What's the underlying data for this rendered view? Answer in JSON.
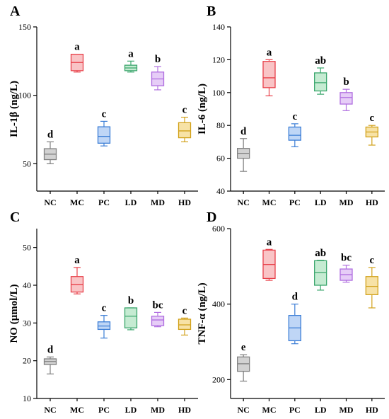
{
  "chart_data": [
    {
      "type": "box",
      "panel": "A",
      "ylabel": "IL-1β (ng/L)",
      "ylim": [
        30,
        150
      ],
      "yticks": [
        50,
        100,
        150
      ],
      "categories": [
        "NC",
        "MC",
        "PC",
        "LD",
        "MD",
        "HD"
      ],
      "colors": [
        "#808080",
        "#e8414a",
        "#3c7ed6",
        "#3aa66c",
        "#b06ee0",
        "#d2a21c"
      ],
      "fills": [
        "#d2d2d2",
        "#f9c4c6",
        "#bfd6f6",
        "#c5ebd2",
        "#e6cdf7",
        "#f7e2a6"
      ],
      "boxes": [
        {
          "min": 50,
          "q1": 53,
          "median": 57,
          "q3": 61,
          "max": 66
        },
        {
          "min": 117,
          "q1": 118,
          "median": 124,
          "q3": 130,
          "max": 130
        },
        {
          "min": 63,
          "q1": 65,
          "median": 70,
          "q3": 77,
          "max": 81
        },
        {
          "min": 117,
          "q1": 118,
          "median": 120,
          "q3": 122,
          "max": 125
        },
        {
          "min": 104,
          "q1": 107,
          "median": 112,
          "q3": 117,
          "max": 121
        },
        {
          "min": 66,
          "q1": 69,
          "median": 74,
          "q3": 80,
          "max": 84
        }
      ],
      "letters": [
        "d",
        "a",
        "c",
        "a",
        "b",
        "c"
      ]
    },
    {
      "type": "box",
      "panel": "B",
      "ylabel": "IL-6 (ng/L)",
      "ylim": [
        40,
        140
      ],
      "yticks": [
        40,
        60,
        80,
        100,
        120,
        140
      ],
      "categories": [
        "NC",
        "MC",
        "PC",
        "LD",
        "MD",
        "HD"
      ],
      "colors": [
        "#808080",
        "#e8414a",
        "#3c7ed6",
        "#3aa66c",
        "#b06ee0",
        "#d2a21c"
      ],
      "fills": [
        "#d2d2d2",
        "#f9c4c6",
        "#bfd6f6",
        "#c5ebd2",
        "#e6cdf7",
        "#f7e2a6"
      ],
      "boxes": [
        {
          "min": 52,
          "q1": 60,
          "median": 63,
          "q3": 66,
          "max": 72
        },
        {
          "min": 98,
          "q1": 103,
          "median": 109,
          "q3": 119,
          "max": 120
        },
        {
          "min": 67,
          "q1": 71,
          "median": 74,
          "q3": 79,
          "max": 81
        },
        {
          "min": 99,
          "q1": 101,
          "median": 106,
          "q3": 112,
          "max": 115
        },
        {
          "min": 89,
          "q1": 93,
          "median": 97,
          "q3": 100,
          "max": 102
        },
        {
          "min": 68,
          "q1": 73,
          "median": 76,
          "q3": 79,
          "max": 80
        }
      ],
      "letters": [
        "d",
        "a",
        "c",
        "ab",
        "b",
        "c"
      ]
    },
    {
      "type": "box",
      "panel": "C",
      "ylabel": "NO (μmol/L)",
      "ylim": [
        10,
        55
      ],
      "yticks": [
        10,
        20,
        30,
        40,
        50
      ],
      "categories": [
        "NC",
        "MC",
        "PC",
        "LD",
        "MD",
        "HD"
      ],
      "colors": [
        "#808080",
        "#e8414a",
        "#3c7ed6",
        "#3aa66c",
        "#b06ee0",
        "#d2a21c"
      ],
      "fills": [
        "#d2d2d2",
        "#f9c4c6",
        "#bfd6f6",
        "#c5ebd2",
        "#e6cdf7",
        "#f7e2a6"
      ],
      "boxes": [
        {
          "min": 16.5,
          "q1": 19,
          "median": 19.8,
          "q3": 20.5,
          "max": 21
        },
        {
          "min": 37.7,
          "q1": 38.2,
          "median": 40.2,
          "q3": 42.3,
          "max": 44.7
        },
        {
          "min": 26,
          "q1": 28.3,
          "median": 29.2,
          "q3": 30.3,
          "max": 32
        },
        {
          "min": 28.2,
          "q1": 28.7,
          "median": 31.8,
          "q3": 34,
          "max": 34
        },
        {
          "min": 29,
          "q1": 29.3,
          "median": 30.8,
          "q3": 31.8,
          "max": 32.8
        },
        {
          "min": 26.8,
          "q1": 28.3,
          "median": 29.5,
          "q3": 31,
          "max": 31.3
        }
      ],
      "letters": [
        "d",
        "a",
        "c",
        "b",
        "bc",
        "c"
      ]
    },
    {
      "type": "box",
      "panel": "D",
      "ylabel": "TNF-α (ng/L)",
      "ylim": [
        150,
        600
      ],
      "yticks": [
        200,
        400,
        600
      ],
      "categories": [
        "NC",
        "MC",
        "PC",
        "LD",
        "MD",
        "HD"
      ],
      "colors": [
        "#808080",
        "#e8414a",
        "#3c7ed6",
        "#3aa66c",
        "#b06ee0",
        "#d2a21c"
      ],
      "fills": [
        "#d2d2d2",
        "#f9c4c6",
        "#bfd6f6",
        "#c5ebd2",
        "#e6cdf7",
        "#f7e2a6"
      ],
      "boxes": [
        {
          "min": 196,
          "q1": 222,
          "median": 242,
          "q3": 260,
          "max": 266
        },
        {
          "min": 463,
          "q1": 468,
          "median": 505,
          "q3": 543,
          "max": 545
        },
        {
          "min": 295,
          "q1": 303,
          "median": 337,
          "q3": 370,
          "max": 400
        },
        {
          "min": 437,
          "q1": 450,
          "median": 483,
          "q3": 515,
          "max": 516
        },
        {
          "min": 458,
          "q1": 463,
          "median": 478,
          "q3": 493,
          "max": 503
        },
        {
          "min": 390,
          "q1": 425,
          "median": 447,
          "q3": 473,
          "max": 497
        }
      ],
      "letters": [
        "e",
        "a",
        "d",
        "ab",
        "bc",
        "c"
      ]
    }
  ]
}
